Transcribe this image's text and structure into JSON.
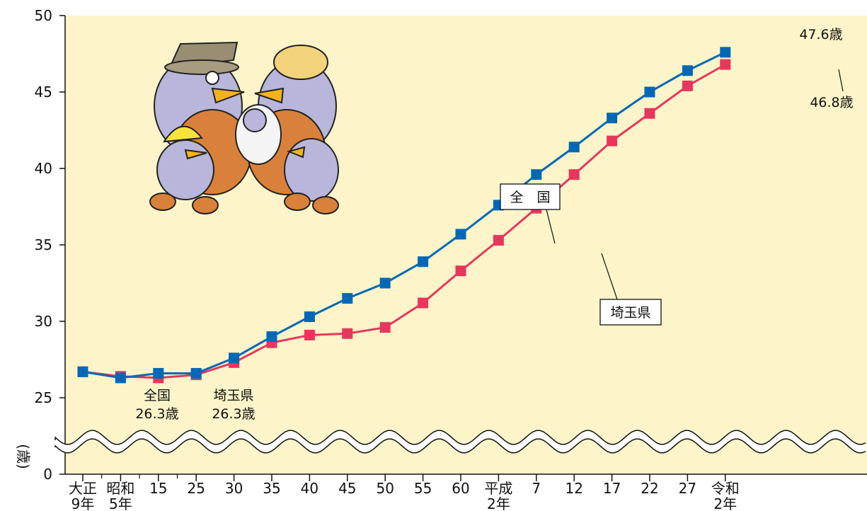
{
  "chart_data": {
    "type": "line",
    "ylabel": "(歳)",
    "ylim": [
      25,
      50
    ],
    "y_axis_break": true,
    "y_ticks": [
      "0",
      "25",
      "30",
      "35",
      "40",
      "45",
      "50"
    ],
    "x_tick_labels": [
      [
        "大正",
        "9年"
      ],
      [
        "昭和",
        "5年"
      ],
      [
        "15",
        ""
      ],
      [
        "25",
        ""
      ],
      [
        "30",
        ""
      ],
      [
        "35",
        ""
      ],
      [
        "40",
        ""
      ],
      [
        "45",
        ""
      ],
      [
        "50",
        ""
      ],
      [
        "55",
        ""
      ],
      [
        "60",
        ""
      ],
      [
        "平成",
        "2年"
      ],
      [
        "7",
        ""
      ],
      [
        "12",
        ""
      ],
      [
        "17",
        ""
      ],
      [
        "22",
        ""
      ],
      [
        "27",
        ""
      ],
      [
        "令和",
        "2年"
      ]
    ],
    "series": [
      {
        "name": "全　国",
        "color": "#0068b7",
        "values": [
          26.7,
          26.3,
          26.6,
          26.6,
          27.6,
          29.0,
          30.3,
          31.5,
          32.5,
          33.9,
          35.7,
          37.6,
          39.6,
          41.4,
          43.3,
          45.0,
          46.4,
          47.6
        ]
      },
      {
        "name": "埼玉県",
        "color": "#e8365d",
        "values": [
          26.7,
          26.4,
          26.3,
          26.5,
          27.3,
          28.6,
          29.1,
          29.2,
          29.6,
          31.2,
          33.3,
          35.3,
          37.4,
          39.6,
          41.8,
          43.6,
          45.4,
          46.8
        ]
      }
    ],
    "annotations": {
      "zenkoku_min": [
        "全国",
        "26.3歳"
      ],
      "saitama_min": [
        "埼玉県",
        "26.3歳"
      ],
      "zenkoku_end": "47.6歳",
      "saitama_end": "46.8歳"
    },
    "background_color": "#fdf5c9",
    "grid": false
  }
}
